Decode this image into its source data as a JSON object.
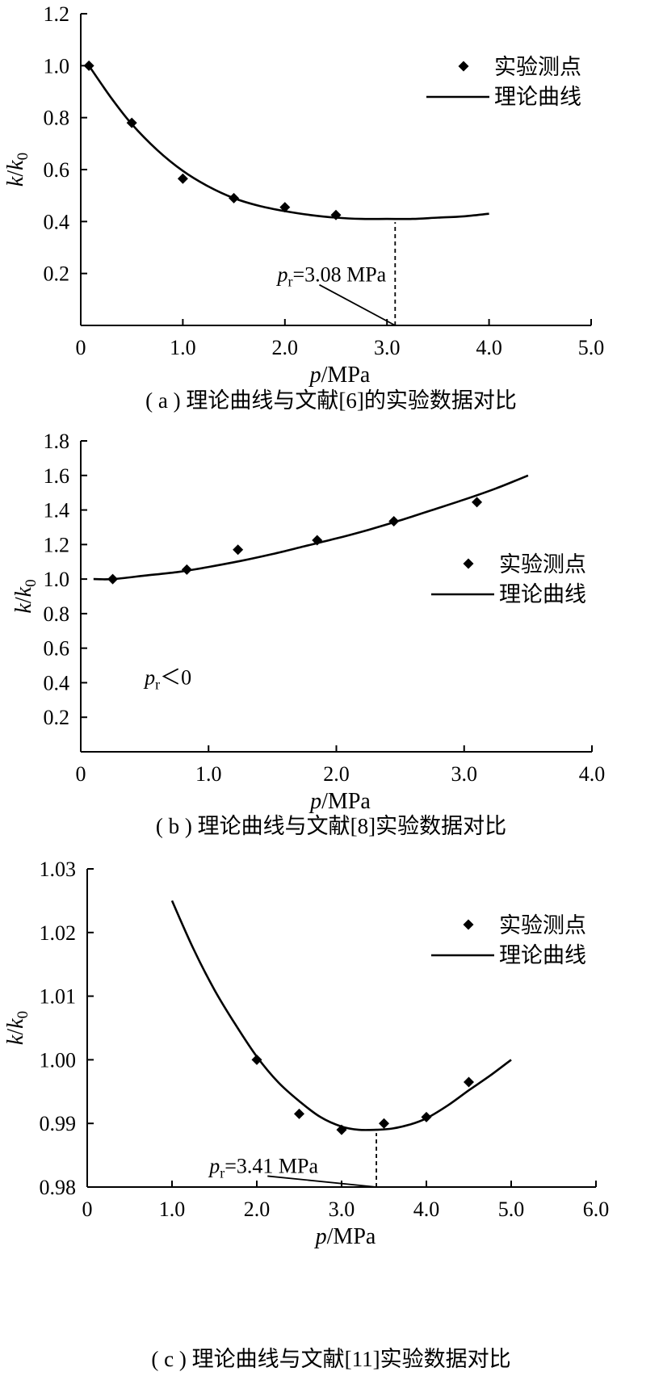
{
  "chart_data": [
    {
      "type": "scatter+line",
      "id": "a",
      "caption": "( a ) 理论曲线与文献[6]的实验数据对比",
      "xlabel": {
        "italic": "p",
        "rest": "/MPa"
      },
      "ylabel": {
        "k": "k",
        "sep": "/",
        "k0": "k",
        "sub": "0"
      },
      "xlim": [
        0,
        5.0
      ],
      "ylim": [
        0,
        1.2
      ],
      "xticks": [
        {
          "v": 0,
          "label": "0"
        },
        {
          "v": 1.0,
          "label": "1.0"
        },
        {
          "v": 2.0,
          "label": "2.0"
        },
        {
          "v": 3.0,
          "label": "3.0"
        },
        {
          "v": 4.0,
          "label": "4.0"
        },
        {
          "v": 5.0,
          "label": "5.0"
        }
      ],
      "yticks": [
        {
          "v": 0.2,
          "label": "0.2"
        },
        {
          "v": 0.4,
          "label": "0.4"
        },
        {
          "v": 0.6,
          "label": "0.6"
        },
        {
          "v": 0.8,
          "label": "0.8"
        },
        {
          "v": 1.0,
          "label": "1.0"
        },
        {
          "v": 1.2,
          "label": "1.2"
        }
      ],
      "series": [
        {
          "name": "实验测点",
          "kind": "points",
          "x": [
            0.08,
            0.5,
            1.0,
            1.5,
            2.0,
            2.5
          ],
          "y": [
            1.0,
            0.78,
            0.565,
            0.49,
            0.455,
            0.425
          ]
        },
        {
          "name": "理论曲线",
          "kind": "line",
          "x": [
            0.08,
            0.3,
            0.5,
            0.75,
            1.0,
            1.25,
            1.5,
            1.75,
            2.0,
            2.25,
            2.5,
            2.75,
            3.0,
            3.25,
            3.5,
            3.75,
            4.0
          ],
          "y": [
            1.0,
            0.875,
            0.775,
            0.675,
            0.595,
            0.535,
            0.49,
            0.46,
            0.44,
            0.425,
            0.415,
            0.41,
            0.41,
            0.41,
            0.415,
            0.42,
            0.43
          ]
        }
      ],
      "annotation": {
        "text_p": "p",
        "text_sub": "r",
        "text_rest": "=3.08 MPa",
        "x": 3.08,
        "text_anchor_x": 2.1,
        "text_anchor_y": 0.2
      },
      "legend_position": "top-right"
    },
    {
      "type": "scatter+line",
      "id": "b",
      "caption": "( b ) 理论曲线与文献[8]实验数据对比",
      "xlabel": {
        "italic": "p",
        "rest": "/MPa"
      },
      "ylabel": {
        "k": "k",
        "sep": "/",
        "k0": "k",
        "sub": "0"
      },
      "xlim": [
        0,
        4.0
      ],
      "ylim": [
        0,
        1.8
      ],
      "xticks": [
        {
          "v": 0,
          "label": "0"
        },
        {
          "v": 1.0,
          "label": "1.0"
        },
        {
          "v": 2.0,
          "label": "2.0"
        },
        {
          "v": 3.0,
          "label": "3.0"
        },
        {
          "v": 4.0,
          "label": "4.0"
        }
      ],
      "yticks": [
        {
          "v": 0.2,
          "label": "0.2"
        },
        {
          "v": 0.4,
          "label": "0.4"
        },
        {
          "v": 0.6,
          "label": "0.6"
        },
        {
          "v": 0.8,
          "label": "0.8"
        },
        {
          "v": 1.0,
          "label": "1.0"
        },
        {
          "v": 1.2,
          "label": "1.2"
        },
        {
          "v": 1.4,
          "label": "1.4"
        },
        {
          "v": 1.6,
          "label": "1.6"
        },
        {
          "v": 1.8,
          "label": "1.8"
        }
      ],
      "series": [
        {
          "name": "实验测点",
          "kind": "points",
          "x": [
            0.25,
            0.83,
            1.23,
            1.85,
            2.45,
            3.1
          ],
          "y": [
            1.0,
            1.055,
            1.17,
            1.225,
            1.335,
            1.445
          ]
        },
        {
          "name": "理论曲线",
          "kind": "line",
          "x": [
            0.1,
            0.25,
            0.5,
            0.75,
            1.0,
            1.25,
            1.5,
            1.75,
            2.0,
            2.25,
            2.5,
            2.75,
            3.0,
            3.25,
            3.5
          ],
          "y": [
            1.0,
            1.0,
            1.02,
            1.04,
            1.07,
            1.105,
            1.145,
            1.19,
            1.235,
            1.285,
            1.34,
            1.4,
            1.46,
            1.525,
            1.6
          ]
        }
      ],
      "annotation": {
        "text_p": "p",
        "text_sub": "r",
        "text_rest": "＜0",
        "text_anchor_x": 0.5,
        "text_anchor_y": 0.39
      },
      "legend_position": "right"
    },
    {
      "type": "scatter+line",
      "id": "c",
      "caption": "( c ) 理论曲线与文献[11]实验数据对比",
      "xlabel": {
        "italic": "p",
        "rest": "/MPa"
      },
      "ylabel": {
        "k": "k",
        "sep": "/",
        "k0": "k",
        "sub": "0"
      },
      "xlim": [
        0,
        6.0
      ],
      "ylim": [
        0.98,
        1.03
      ],
      "xticks": [
        {
          "v": 0,
          "label": "0"
        },
        {
          "v": 1.0,
          "label": "1.0"
        },
        {
          "v": 2.0,
          "label": "2.0"
        },
        {
          "v": 3.0,
          "label": "3.0"
        },
        {
          "v": 4.0,
          "label": "4.0"
        },
        {
          "v": 5.0,
          "label": "5.0"
        },
        {
          "v": 6.0,
          "label": "6.0"
        }
      ],
      "yticks": [
        {
          "v": 0.98,
          "label": "0.98"
        },
        {
          "v": 0.99,
          "label": "0.99"
        },
        {
          "v": 1.0,
          "label": "1.00"
        },
        {
          "v": 1.01,
          "label": "1.01"
        },
        {
          "v": 1.02,
          "label": "1.02"
        },
        {
          "v": 1.03,
          "label": "1.03"
        }
      ],
      "series": [
        {
          "name": "实验测点",
          "kind": "points",
          "x": [
            2.0,
            2.5,
            3.0,
            3.5,
            4.0,
            4.5
          ],
          "y": [
            1.0,
            0.9915,
            0.989,
            0.99,
            0.991,
            0.9965
          ]
        },
        {
          "name": "理论曲线",
          "kind": "line",
          "x": [
            1.0,
            1.25,
            1.5,
            1.75,
            2.0,
            2.25,
            2.5,
            2.75,
            3.0,
            3.2,
            3.41,
            3.6,
            3.8,
            4.0,
            4.25,
            4.5,
            4.75,
            5.0
          ],
          "y": [
            1.025,
            1.0175,
            1.011,
            1.0055,
            1.0005,
            0.9965,
            0.9935,
            0.991,
            0.9895,
            0.989,
            0.989,
            0.9892,
            0.9898,
            0.9908,
            0.9928,
            0.9952,
            0.9975,
            1.0
          ]
        }
      ],
      "annotation": {
        "text_p": "p",
        "text_sub": "r",
        "text_rest": "=3.41 MPa",
        "x": 3.41,
        "text_anchor_x": 1.65,
        "text_anchor_y": 0.9835
      },
      "legend_position": "top-right"
    }
  ]
}
